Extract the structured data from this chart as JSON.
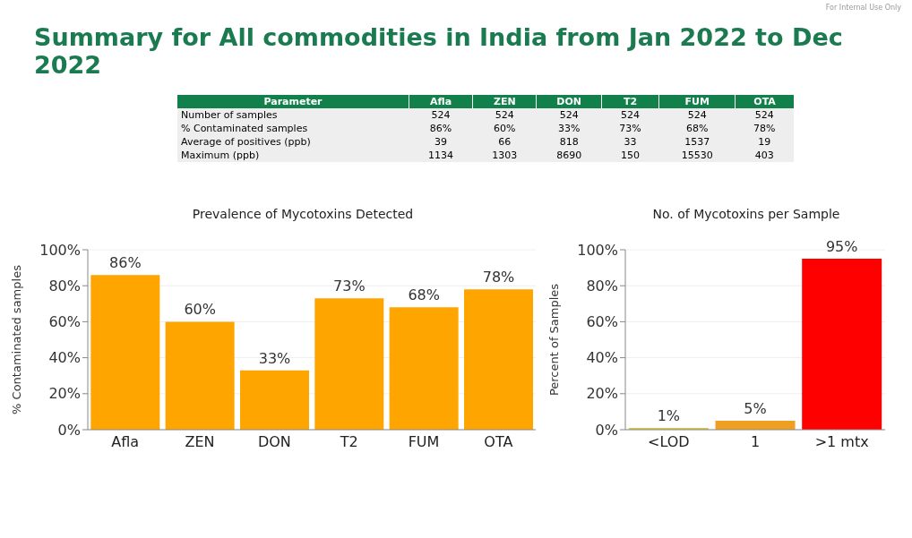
{
  "chart_data": [
    {
      "type": "other",
      "title": "Summary for All commodities in India from Jan 2022 to Dec 2022",
      "ylabel": "Parameter",
      "categories": [
        "Afla",
        "ZEN",
        "DON",
        "T2",
        "FUM",
        "OTA"
      ],
      "y_categories": [
        "Number of samples",
        "% Contaminated samples",
        "Average of positives (ppb)",
        "Maximum (ppb)"
      ],
      "cell_labels": [
        [
          "524",
          "524",
          "524",
          "524",
          "524",
          "524"
        ],
        [
          "86%",
          "60%",
          "33%",
          "73%",
          "68%",
          "78%"
        ],
        [
          "39",
          "66",
          "818",
          "33",
          "1537",
          "19"
        ],
        [
          "1134",
          "1303",
          "8690",
          "150",
          "15530",
          "403"
        ]
      ],
      "annotations": [
        "For Internal Use Only"
      ]
    },
    {
      "type": "bar",
      "title": "Prevalence of Mycotoxins Detected",
      "ylabel": "% Contaminated samples",
      "categories": [
        "Afla",
        "ZEN",
        "DON",
        "T2",
        "FUM",
        "OTA"
      ],
      "values": [
        86,
        60,
        33,
        73,
        68,
        78
      ],
      "color": "#ffa500",
      "value_labels": [
        "86%",
        "60%",
        "33%",
        "73%",
        "68%",
        "78%"
      ],
      "ylim": [
        0,
        100
      ],
      "yticks": [
        {
          "value": 0,
          "label": "0%"
        },
        {
          "value": 20,
          "label": "20%"
        },
        {
          "value": 40,
          "label": "40%"
        },
        {
          "value": 60,
          "label": "60%"
        },
        {
          "value": 80,
          "label": "80%"
        },
        {
          "value": 100,
          "label": "100%"
        }
      ],
      "grid": "y"
    },
    {
      "type": "bar",
      "title": "No. of Mycotoxins per Sample",
      "ylabel": "Percent of Samples",
      "categories": [
        "<LOD",
        "1",
        ">1 mtx"
      ],
      "values": [
        1,
        5,
        95
      ],
      "colors": [
        "#d6c84a",
        "#f0a020",
        "#ff0000"
      ],
      "value_labels": [
        "1%",
        "5%",
        "95%"
      ],
      "ylim": [
        0,
        100
      ],
      "yticks": [
        {
          "value": 0,
          "label": "0%"
        },
        {
          "value": 20,
          "label": "20%"
        },
        {
          "value": 40,
          "label": "40%"
        },
        {
          "value": 60,
          "label": "60%"
        },
        {
          "value": 80,
          "label": "80%"
        },
        {
          "value": 100,
          "label": "100%"
        }
      ],
      "grid": "y"
    }
  ]
}
